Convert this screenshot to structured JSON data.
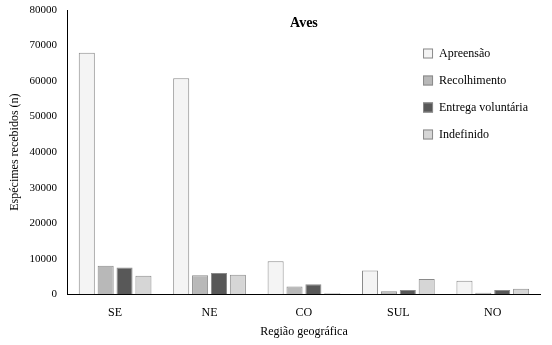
{
  "chart_data": {
    "type": "bar",
    "title": "Aves",
    "x_label": "Região geográfica",
    "y_label": "Espécimes recebidos (n)",
    "categories": [
      "SE",
      "NE",
      "CO",
      "SUL",
      "NO"
    ],
    "series": [
      {
        "name": "Apreensão",
        "color": "#f4f4f4",
        "values": [
          68000,
          60800,
          9300,
          6700,
          3800
        ]
      },
      {
        "name": "Recolhimento",
        "color": "#b8b8b8",
        "values": [
          8000,
          5300,
          2200,
          800,
          400
        ]
      },
      {
        "name": "Entrega voluntária",
        "color": "#585858",
        "values": [
          7500,
          6000,
          2800,
          1200,
          1200
        ]
      },
      {
        "name": "Indefinido",
        "color": "#d6d6d6",
        "values": [
          5200,
          5500,
          300,
          4300,
          1500
        ]
      }
    ],
    "ylim": [
      0,
      80000
    ],
    "yticks": [
      0,
      10000,
      20000,
      30000,
      40000,
      50000,
      60000,
      70000,
      80000
    ],
    "grid": false,
    "legend": "upper right"
  }
}
